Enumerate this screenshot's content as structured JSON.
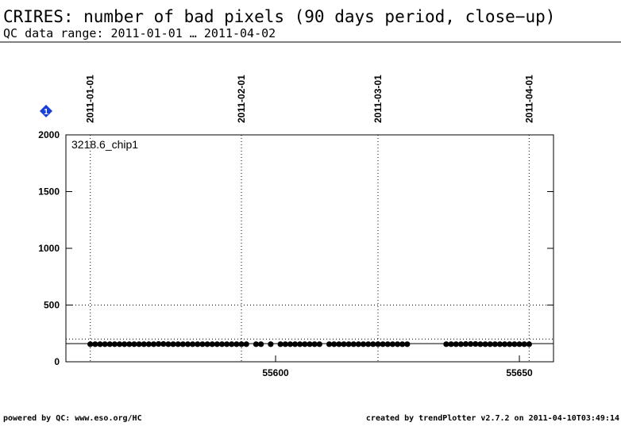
{
  "chart_data": {
    "type": "scatter",
    "title": "CRIRES: number of bad pixels (90 days period, close−up)",
    "subtitle": "QC data range: 2011-01-01 … 2011-04-02",
    "legend_label": "3218.6_chip1",
    "marker_label": "1",
    "footer_left": "powered by QC: www.eso.org/HC",
    "footer_right": "created by trendPlotter v2.7.2 on 2011-04-10T03:49:14",
    "color": "#000000",
    "xlim": [
      55557,
      55657
    ],
    "ylim": [
      0,
      2000
    ],
    "xticks": [
      55600,
      55650
    ],
    "yticks": [
      0,
      500,
      1000,
      1500,
      2000
    ],
    "date_ticks": [
      {
        "value": 55562,
        "label": "2011-01-01"
      },
      {
        "value": 55593,
        "label": "2011-02-01"
      },
      {
        "value": 55621,
        "label": "2011-03-01"
      },
      {
        "value": 55652,
        "label": "2011-04-01"
      }
    ],
    "hlines": [
      {
        "value": 160,
        "style": "solid"
      },
      {
        "value": 200,
        "style": "dotted"
      },
      {
        "value": 500,
        "style": "dotted"
      }
    ],
    "x": [
      55562,
      55563,
      55564,
      55565,
      55566,
      55567,
      55568,
      55569,
      55570,
      55571,
      55572,
      55573,
      55574,
      55575,
      55576,
      55577,
      55578,
      55579,
      55580,
      55581,
      55582,
      55583,
      55584,
      55585,
      55586,
      55587,
      55588,
      55589,
      55590,
      55591,
      55592,
      55593,
      55594,
      55596,
      55597,
      55599,
      55601,
      55602,
      55603,
      55604,
      55605,
      55606,
      55607,
      55608,
      55609,
      55611,
      55612,
      55613,
      55614,
      55615,
      55616,
      55617,
      55618,
      55619,
      55620,
      55621,
      55622,
      55623,
      55624,
      55625,
      55626,
      55627,
      55635,
      55636,
      55637,
      55638,
      55639,
      55640,
      55641,
      55642,
      55643,
      55644,
      55645,
      55646,
      55647,
      55648,
      55649,
      55650,
      55651,
      55652
    ],
    "values": [
      155,
      155,
      155,
      155,
      155,
      155,
      155,
      155,
      155,
      155,
      155,
      155,
      155,
      155,
      157,
      157,
      155,
      155,
      155,
      155,
      155,
      155,
      155,
      155,
      155,
      155,
      155,
      155,
      155,
      155,
      155,
      155,
      155,
      155,
      155,
      155,
      155,
      155,
      155,
      155,
      155,
      155,
      155,
      155,
      155,
      155,
      155,
      155,
      155,
      155,
      155,
      155,
      155,
      155,
      155,
      155,
      155,
      155,
      155,
      155,
      155,
      155,
      155,
      155,
      155,
      155,
      157,
      157,
      157,
      155,
      155,
      155,
      155,
      155,
      155,
      155,
      155,
      155,
      155,
      155
    ]
  }
}
